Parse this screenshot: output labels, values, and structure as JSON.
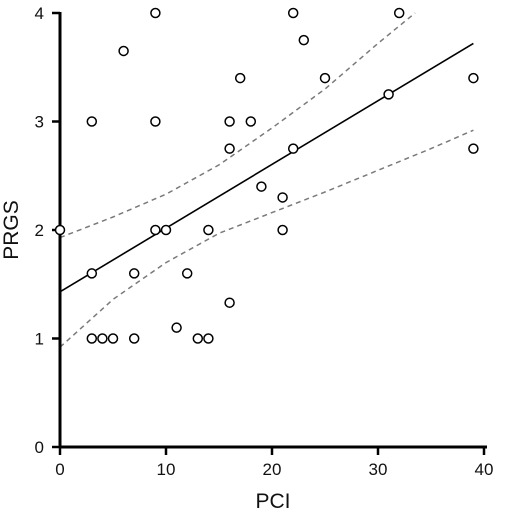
{
  "chart_data": {
    "type": "scatter",
    "xlabel": "PCI",
    "ylabel": "PRGS",
    "xlim": [
      0,
      40
    ],
    "ylim": [
      0,
      4
    ],
    "xticks": [
      "0",
      "10",
      "20",
      "30",
      "40"
    ],
    "yticks": [
      "0",
      "1",
      "2",
      "3",
      "4"
    ],
    "grid": false,
    "points": [
      {
        "x": 0,
        "y": 2.0
      },
      {
        "x": 3,
        "y": 3.0
      },
      {
        "x": 3,
        "y": 1.6
      },
      {
        "x": 3,
        "y": 1.0
      },
      {
        "x": 4,
        "y": 1.0
      },
      {
        "x": 5,
        "y": 1.0
      },
      {
        "x": 6,
        "y": 3.65
      },
      {
        "x": 7,
        "y": 1.6
      },
      {
        "x": 7,
        "y": 1.0
      },
      {
        "x": 9,
        "y": 4.0
      },
      {
        "x": 9,
        "y": 3.0
      },
      {
        "x": 9,
        "y": 2.0
      },
      {
        "x": 10,
        "y": 2.0
      },
      {
        "x": 11,
        "y": 1.1
      },
      {
        "x": 12,
        "y": 1.6
      },
      {
        "x": 13,
        "y": 1.0
      },
      {
        "x": 14,
        "y": 1.0
      },
      {
        "x": 14,
        "y": 2.0
      },
      {
        "x": 16,
        "y": 3.0
      },
      {
        "x": 16,
        "y": 2.75
      },
      {
        "x": 16,
        "y": 1.33
      },
      {
        "x": 17,
        "y": 3.4
      },
      {
        "x": 18,
        "y": 3.0
      },
      {
        "x": 19,
        "y": 2.4
      },
      {
        "x": 21,
        "y": 2.3
      },
      {
        "x": 21,
        "y": 2.0
      },
      {
        "x": 22,
        "y": 4.0
      },
      {
        "x": 22,
        "y": 2.75
      },
      {
        "x": 23,
        "y": 3.75
      },
      {
        "x": 25,
        "y": 3.4
      },
      {
        "x": 31,
        "y": 3.25
      },
      {
        "x": 32,
        "y": 4.0
      },
      {
        "x": 39,
        "y": 3.4
      },
      {
        "x": 39,
        "y": 2.75
      }
    ],
    "regression_line": {
      "x": [
        0,
        39
      ],
      "y": [
        1.43,
        3.72
      ]
    },
    "confidence_band": {
      "upper": {
        "x": [
          0,
          5,
          10,
          15,
          20,
          25,
          30,
          33.5
        ],
        "y": [
          1.93,
          2.12,
          2.33,
          2.6,
          2.94,
          3.3,
          3.72,
          4.0
        ]
      },
      "lower": {
        "x": [
          0,
          5,
          10,
          15,
          20,
          25,
          30,
          35,
          39
        ],
        "y": [
          0.92,
          1.36,
          1.7,
          1.97,
          2.16,
          2.35,
          2.55,
          2.75,
          2.92
        ]
      }
    },
    "colors": {
      "axis": "#000000",
      "points_stroke": "#000000",
      "points_fill": "#ffffff",
      "regression": "#000000",
      "band": "#7a7a7a"
    }
  }
}
